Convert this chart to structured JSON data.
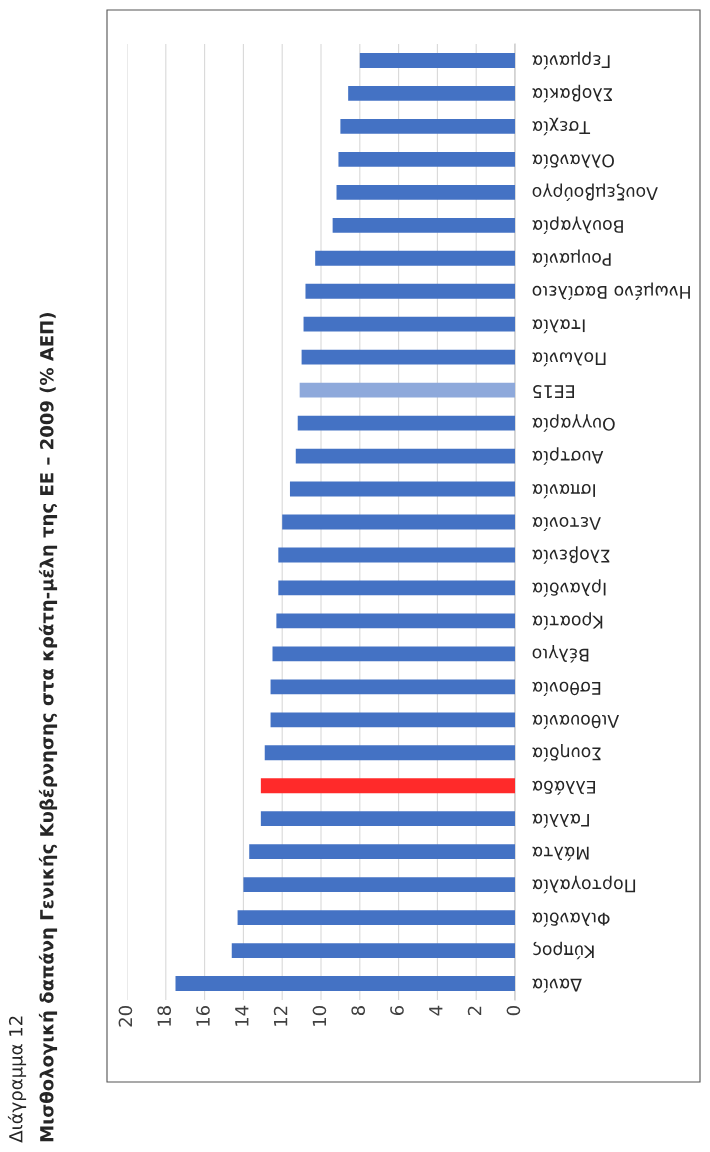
{
  "chart_data": {
    "type": "bar",
    "orientation": "horizontal",
    "title": "Μισθολογική δαπάνη Γενικής Κυβέρνησης στα κράτη-μέλη της ΕΕ – 2009 (% ΑΕΠ)",
    "annotations": [
      "Διάγραμμα 12"
    ],
    "categories": [
      "Γερμανία",
      "Σλοβακία",
      "Τσεχία",
      "Ολλανδία",
      "Λουξεμβούργο",
      "Βουλγαρία",
      "Ρουμανία",
      "Ηνωμένο Βασίλειο",
      "Ιταλία",
      "Πολωνία",
      "ΕΕ15",
      "Ουγγαρία",
      "Αυστρία",
      "Ισπανία",
      "Λετονία",
      "Σλοβενία",
      "Ιρλανδία",
      "Κροατία",
      "Βέλγιο",
      "Εσθονία",
      "Λιθουανία",
      "Σουηδία",
      "Ελλάδα",
      "Γαλλία",
      "Μάλτα",
      "Πορτογαλία",
      "Φιλανδία",
      "Κύπρος",
      "Δανία"
    ],
    "values": [
      8.0,
      8.6,
      9.0,
      9.1,
      9.2,
      9.4,
      10.3,
      10.8,
      10.9,
      11.0,
      11.1,
      11.2,
      11.3,
      11.6,
      12.0,
      12.2,
      12.2,
      12.3,
      12.5,
      12.6,
      12.6,
      12.9,
      13.1,
      13.1,
      13.7,
      14.0,
      14.3,
      14.6,
      17.5
    ],
    "colors": [
      "#4472c4",
      "#4472c4",
      "#4472c4",
      "#4472c4",
      "#4472c4",
      "#4472c4",
      "#4472c4",
      "#4472c4",
      "#4472c4",
      "#4472c4",
      "#8ea9db",
      "#4472c4",
      "#4472c4",
      "#4472c4",
      "#4472c4",
      "#4472c4",
      "#4472c4",
      "#4472c4",
      "#4472c4",
      "#4472c4",
      "#4472c4",
      "#4472c4",
      "#ff2a2a",
      "#4472c4",
      "#4472c4",
      "#4472c4",
      "#4472c4",
      "#4472c4",
      "#4472c4"
    ],
    "xlim": [
      20,
      0
    ],
    "xticks": [
      0,
      2,
      4,
      6,
      8,
      10,
      12,
      14,
      16,
      18,
      20
    ],
    "grid": "x",
    "legend": false
  }
}
